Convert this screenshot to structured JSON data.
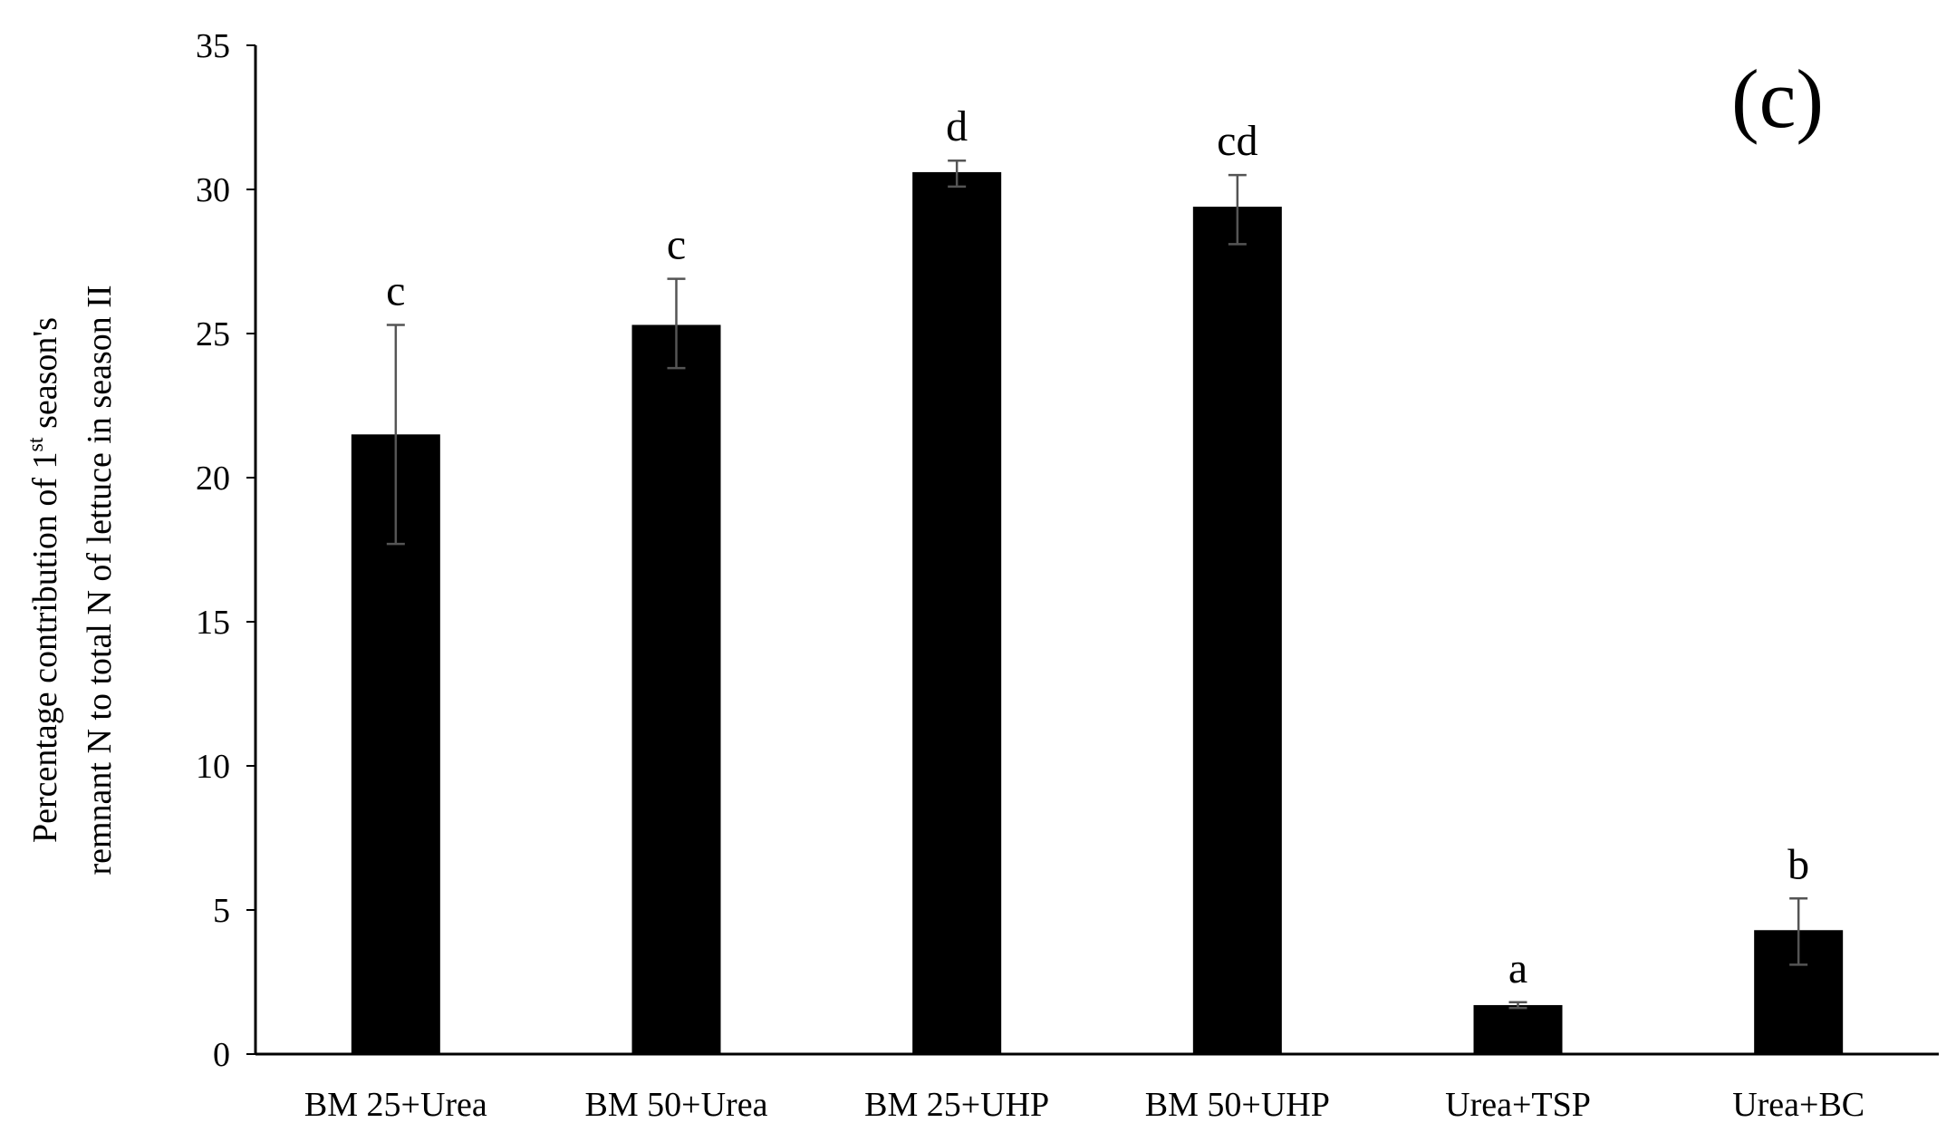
{
  "chart_data": {
    "type": "bar",
    "panel_label": "(c)",
    "ylabel_line1": {
      "before": "Percentage contribution of 1",
      "superscript": "st",
      "after": " season's"
    },
    "ylabel_line2": "remnant N to total N of lettuce in season II",
    "ylim": [
      0,
      35
    ],
    "yticks": [
      0,
      5,
      10,
      15,
      20,
      25,
      30,
      35
    ],
    "categories": [
      "BM 25+Urea",
      "BM 50+Urea",
      "BM 25+UHP",
      "BM 50+UHP",
      "Urea+TSP",
      "Urea+BC"
    ],
    "values": [
      21.5,
      25.3,
      30.6,
      29.4,
      1.7,
      4.3
    ],
    "error_low": [
      17.7,
      23.8,
      30.1,
      28.1,
      1.6,
      3.1
    ],
    "error_high": [
      25.3,
      26.9,
      31.0,
      30.5,
      1.8,
      5.4
    ],
    "significance_letters": [
      "c",
      "c",
      "d",
      "cd",
      "a",
      "b"
    ],
    "bar_color": "#000000",
    "error_bar_color": "#555555",
    "grid": false,
    "legend": "none"
  }
}
